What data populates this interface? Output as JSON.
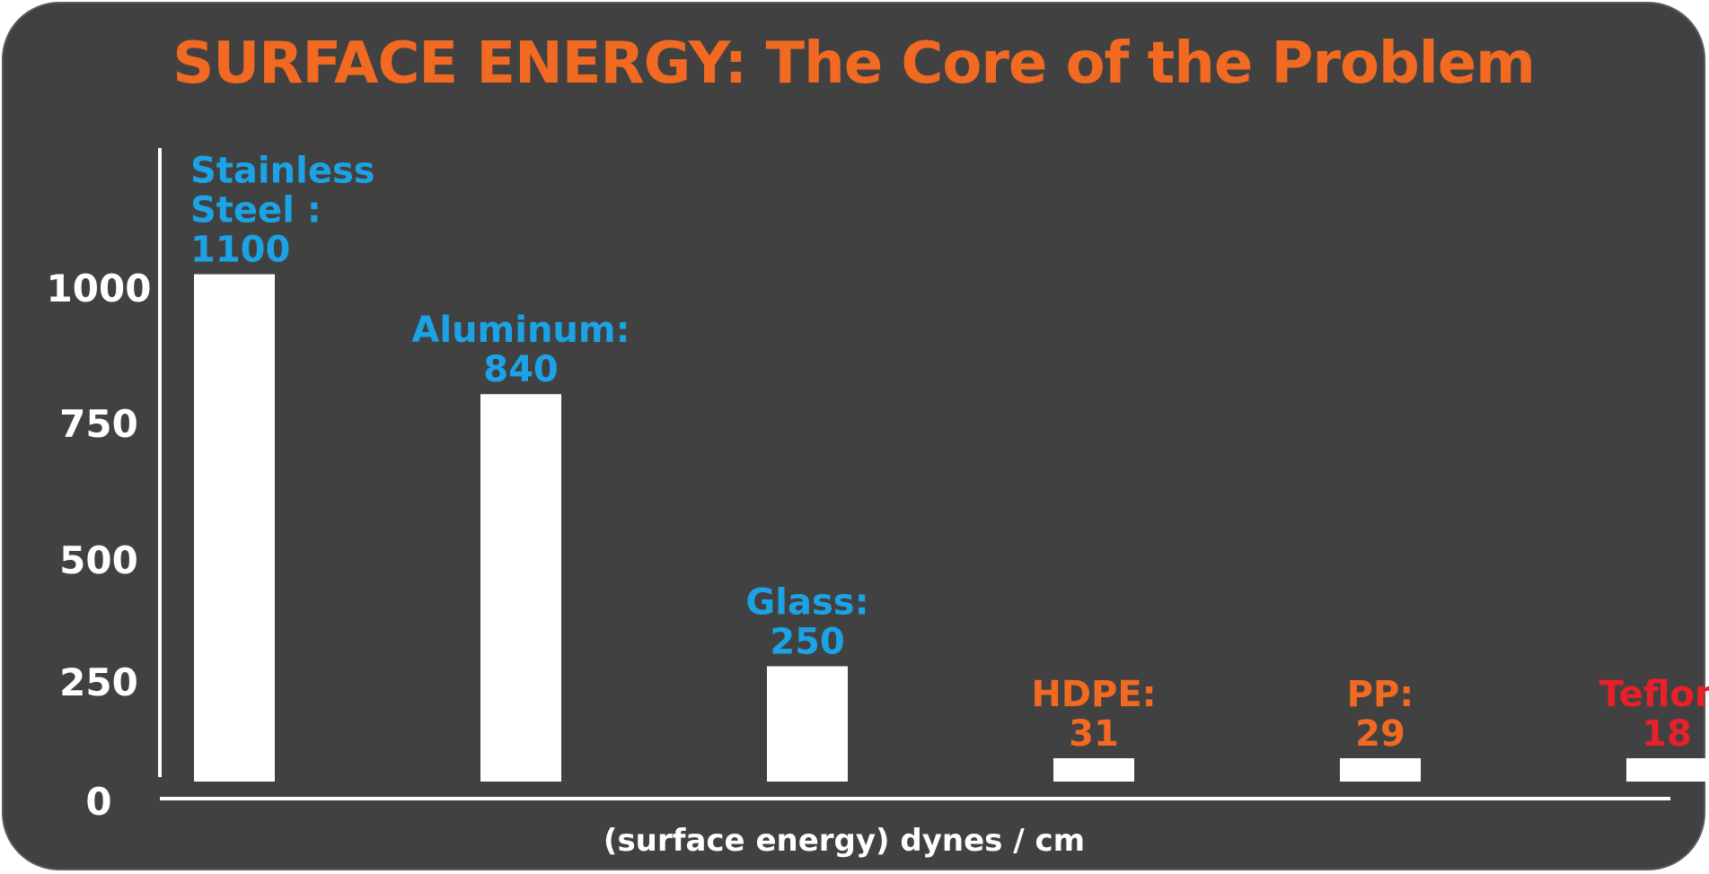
{
  "chart_data": {
    "type": "bar",
    "title": "SURFACE ENERGY: The Core of the Problem",
    "xlabel": "(surface energy) dynes / cm",
    "ylabel": "",
    "ylim": [
      0,
      1250
    ],
    "yticks": [
      0,
      250,
      500,
      750,
      1000
    ],
    "categories": [
      "Stainless Steel",
      "Aluminum",
      "Glass",
      "HDPE",
      "PP",
      "Teflon"
    ],
    "values": [
      1100,
      840,
      250,
      31,
      29,
      18
    ],
    "labels": [
      [
        "Stainless",
        "Steel :",
        "1100"
      ],
      [
        "Aluminum:",
        "840"
      ],
      [
        "Glass:",
        "250"
      ],
      [
        "HDPE:",
        "31"
      ],
      [
        "PP:",
        "29"
      ],
      [
        "Teflon:",
        "18"
      ]
    ],
    "label_colors": [
      "#1ba3e6",
      "#1ba3e6",
      "#1ba3e6",
      "#f26a22",
      "#f26a22",
      "#e8202a"
    ],
    "colors": {
      "background": "#424141",
      "bar": "#ffffff",
      "title": "#f26a22",
      "axis": "#ffffff"
    },
    "grid": false
  }
}
